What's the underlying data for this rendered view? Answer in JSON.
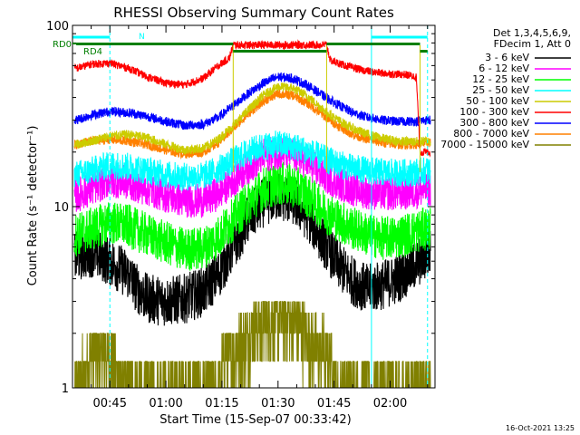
{
  "chart_data": {
    "type": "line",
    "title": "RHESSI Observing Summary Count Rates",
    "xlabel": "Start Time (15-Sep-07 00:33:42)",
    "ylabel": "Count Rate (s⁻¹ detector⁻¹)",
    "yscale": "log",
    "ylim": [
      1,
      100
    ],
    "xlim_minutes": [
      35,
      132
    ],
    "grid": false,
    "legend_position": "right",
    "x_ticks": [
      {
        "label": "00:45",
        "minute": 45
      },
      {
        "label": "01:00",
        "minute": 60
      },
      {
        "label": "01:15",
        "minute": 75
      },
      {
        "label": "01:30",
        "minute": 90
      },
      {
        "label": "01:45",
        "minute": 105
      },
      {
        "label": "02:00",
        "minute": 120
      }
    ],
    "y_ticks": [
      {
        "label": "1",
        "value": 1
      },
      {
        "label": "10",
        "value": 10
      },
      {
        "label": "100",
        "value": 100
      }
    ],
    "legend_header": [
      "Det 1,3,4,5,6,9,",
      "FDecim 1, Att 0"
    ],
    "series": [
      {
        "name": "3 - 6 keV",
        "color": "#000000",
        "profile": "attenuated",
        "base": 4.3,
        "peak": 11.5,
        "noise": 0.32,
        "points": [
          [
            36,
            5.3
          ],
          [
            40,
            5.6
          ],
          [
            45,
            5.0
          ],
          [
            50,
            4.2
          ],
          [
            52,
            3.6
          ],
          [
            55,
            3.1
          ],
          [
            60,
            3.0
          ],
          [
            65,
            3.1
          ],
          [
            70,
            3.4
          ],
          [
            74,
            4.2
          ],
          [
            78,
            6.0
          ],
          [
            82,
            8.5
          ],
          [
            86,
            10.5
          ],
          [
            90,
            11.5
          ],
          [
            94,
            10.8
          ],
          [
            98,
            8.8
          ],
          [
            102,
            6.5
          ],
          [
            106,
            4.8
          ],
          [
            110,
            3.9
          ],
          [
            114,
            3.5
          ],
          [
            118,
            3.7
          ],
          [
            122,
            4.0
          ],
          [
            126,
            4.6
          ],
          [
            130,
            5.5
          ]
        ]
      },
      {
        "name": "6 - 12 keV",
        "color": "#ff00ff",
        "profile": "attenuated",
        "base": 12.5,
        "peak": 20.0,
        "noise": 0.22,
        "points": [
          [
            36,
            11.5
          ],
          [
            40,
            12.5
          ],
          [
            45,
            14.0
          ],
          [
            50,
            13.5
          ],
          [
            55,
            12.5
          ],
          [
            60,
            11.5
          ],
          [
            65,
            10.8
          ],
          [
            70,
            10.8
          ],
          [
            74,
            11.8
          ],
          [
            78,
            14.0
          ],
          [
            82,
            16.5
          ],
          [
            86,
            19.0
          ],
          [
            90,
            20.0
          ],
          [
            94,
            19.5
          ],
          [
            98,
            17.5
          ],
          [
            102,
            15.0
          ],
          [
            106,
            13.5
          ],
          [
            110,
            12.5
          ],
          [
            114,
            12.0
          ],
          [
            118,
            11.8
          ],
          [
            122,
            11.8
          ],
          [
            126,
            12.0
          ],
          [
            130,
            12.5
          ]
        ]
      },
      {
        "name": "12 - 25 keV",
        "color": "#00ff00",
        "profile": "attenuated",
        "base": 7.5,
        "peak": 13.5,
        "noise": 0.28,
        "points": [
          [
            36,
            7.0
          ],
          [
            40,
            7.5
          ],
          [
            45,
            8.2
          ],
          [
            50,
            7.8
          ],
          [
            55,
            7.0
          ],
          [
            60,
            6.3
          ],
          [
            65,
            5.8
          ],
          [
            70,
            5.9
          ],
          [
            74,
            6.8
          ],
          [
            78,
            8.5
          ],
          [
            82,
            10.5
          ],
          [
            86,
            12.5
          ],
          [
            90,
            13.5
          ],
          [
            94,
            13.0
          ],
          [
            98,
            11.5
          ],
          [
            102,
            9.6
          ],
          [
            106,
            8.4
          ],
          [
            110,
            7.6
          ],
          [
            114,
            7.0
          ],
          [
            118,
            6.7
          ],
          [
            122,
            6.8
          ],
          [
            126,
            7.2
          ],
          [
            130,
            7.6
          ]
        ]
      },
      {
        "name": "25 - 50 keV",
        "color": "#00ffff",
        "profile": "attenuated",
        "base": 15.5,
        "peak": 22.0,
        "noise": 0.18,
        "points": [
          [
            36,
            15.0
          ],
          [
            40,
            15.8
          ],
          [
            45,
            17.0
          ],
          [
            50,
            16.6
          ],
          [
            55,
            15.8
          ],
          [
            60,
            15.0
          ],
          [
            65,
            14.6
          ],
          [
            70,
            14.8
          ],
          [
            74,
            16.0
          ],
          [
            78,
            18.0
          ],
          [
            82,
            20.0
          ],
          [
            86,
            21.5
          ],
          [
            90,
            22.0
          ],
          [
            94,
            21.5
          ],
          [
            98,
            20.2
          ],
          [
            102,
            18.5
          ],
          [
            106,
            17.2
          ],
          [
            110,
            16.3
          ],
          [
            114,
            15.8
          ],
          [
            118,
            15.5
          ],
          [
            122,
            15.3
          ],
          [
            126,
            15.4
          ],
          [
            130,
            15.8
          ]
        ]
      },
      {
        "name": "50 - 100 keV",
        "color": "#cccc00",
        "profile": "smooth",
        "base": 23.0,
        "peak": 46.0,
        "noise": 0.06,
        "points": [
          [
            36,
            22.0
          ],
          [
            40,
            23.0
          ],
          [
            45,
            24.5
          ],
          [
            50,
            25.0
          ],
          [
            55,
            24.0
          ],
          [
            60,
            22.0
          ],
          [
            65,
            20.5
          ],
          [
            70,
            21.0
          ],
          [
            74,
            23.5
          ],
          [
            78,
            28.0
          ],
          [
            82,
            34.0
          ],
          [
            86,
            41.0
          ],
          [
            90,
            46.0
          ],
          [
            94,
            45.0
          ],
          [
            98,
            40.5
          ],
          [
            102,
            34.5
          ],
          [
            106,
            30.0
          ],
          [
            110,
            27.0
          ],
          [
            114,
            25.0
          ],
          [
            118,
            23.8
          ],
          [
            122,
            23.0
          ],
          [
            126,
            22.8
          ],
          [
            130,
            23.0
          ]
        ]
      },
      {
        "name": "100 - 300 keV",
        "color": "#ff0000",
        "profile": "flagged",
        "base": 58.0,
        "peak": 78.0,
        "noise": 0.05,
        "points": [
          [
            36,
            58.0
          ],
          [
            40,
            61.0
          ],
          [
            45,
            62.0
          ],
          [
            50,
            58.0
          ],
          [
            55,
            52.0
          ],
          [
            60,
            48.0
          ],
          [
            65,
            47.0
          ],
          [
            70,
            51.0
          ],
          [
            74,
            60.0
          ],
          [
            77,
            66.0
          ],
          [
            78,
            78.0
          ],
          [
            103,
            78.0
          ],
          [
            104,
            64.0
          ],
          [
            108,
            60.0
          ],
          [
            112,
            57.0
          ],
          [
            116,
            55.0
          ],
          [
            120,
            54.0
          ],
          [
            124,
            53.5
          ],
          [
            127,
            52.0
          ],
          [
            128,
            20.0
          ]
        ]
      },
      {
        "name": "300 - 800 keV",
        "color": "#0000ff",
        "profile": "smooth",
        "base": 30.0,
        "peak": 52.0,
        "noise": 0.06,
        "points": [
          [
            36,
            30.0
          ],
          [
            40,
            32.0
          ],
          [
            45,
            33.5
          ],
          [
            50,
            33.0
          ],
          [
            55,
            31.5
          ],
          [
            60,
            29.5
          ],
          [
            65,
            28.0
          ],
          [
            70,
            28.5
          ],
          [
            74,
            31.0
          ],
          [
            78,
            36.0
          ],
          [
            82,
            42.0
          ],
          [
            86,
            48.0
          ],
          [
            90,
            52.0
          ],
          [
            94,
            51.0
          ],
          [
            98,
            46.5
          ],
          [
            102,
            41.0
          ],
          [
            106,
            36.5
          ],
          [
            110,
            33.0
          ],
          [
            114,
            31.0
          ],
          [
            118,
            30.0
          ],
          [
            122,
            29.5
          ],
          [
            126,
            29.5
          ],
          [
            130,
            30.0
          ]
        ]
      },
      {
        "name": "800 - 7000 keV",
        "color": "#ff8000",
        "profile": "smooth",
        "base": 22.0,
        "peak": 42.0,
        "noise": 0.06,
        "points": [
          [
            36,
            22.0
          ],
          [
            40,
            23.0
          ],
          [
            45,
            23.5
          ],
          [
            50,
            23.0
          ],
          [
            55,
            22.0
          ],
          [
            60,
            20.5
          ],
          [
            65,
            19.5
          ],
          [
            70,
            20.0
          ],
          [
            74,
            22.5
          ],
          [
            78,
            27.0
          ],
          [
            82,
            32.5
          ],
          [
            86,
            38.0
          ],
          [
            90,
            42.0
          ],
          [
            94,
            41.0
          ],
          [
            98,
            37.0
          ],
          [
            102,
            32.0
          ],
          [
            106,
            28.0
          ],
          [
            110,
            25.0
          ],
          [
            114,
            23.5
          ],
          [
            118,
            22.5
          ],
          [
            122,
            22.0
          ],
          [
            126,
            22.0
          ],
          [
            130,
            22.5
          ]
        ]
      },
      {
        "name": "7000 - 15000 keV",
        "color": "#808000",
        "profile": "quantized",
        "base": 1.4,
        "peak": 2.6,
        "noise": 0.0,
        "points": [
          [
            36,
            1.0
          ],
          [
            40,
            1.6
          ],
          [
            45,
            1.5
          ],
          [
            50,
            1.0
          ],
          [
            60,
            1.0
          ],
          [
            74,
            1.0
          ],
          [
            76,
            1.6
          ],
          [
            80,
            1.7
          ],
          [
            84,
            2.2
          ],
          [
            88,
            2.5
          ],
          [
            92,
            2.5
          ],
          [
            96,
            2.2
          ],
          [
            100,
            1.7
          ],
          [
            104,
            1.6
          ],
          [
            106,
            1.0
          ],
          [
            130,
            1.0
          ]
        ]
      }
    ],
    "annotations": {
      "rd0": {
        "label": "RD0",
        "color": "#007f00"
      },
      "rd4": {
        "label": "RD4",
        "color": "#007f00"
      },
      "n_label": {
        "label": "N",
        "color": "#00ffff"
      }
    },
    "night_marks_minutes": [
      35,
      45,
      115,
      130
    ],
    "saa_flags": [
      {
        "start": 36,
        "end": 78,
        "level": 79
      },
      {
        "start": 78,
        "end": 103,
        "level": 72
      },
      {
        "start": 103,
        "end": 128,
        "level": 79
      },
      {
        "start": 128,
        "end": 130,
        "level": 72
      }
    ],
    "night_bar": [
      {
        "start": 35,
        "end": 45
      },
      {
        "start": 115,
        "end": 130
      }
    ],
    "timestamp": "16-Oct-2021 13:25"
  }
}
